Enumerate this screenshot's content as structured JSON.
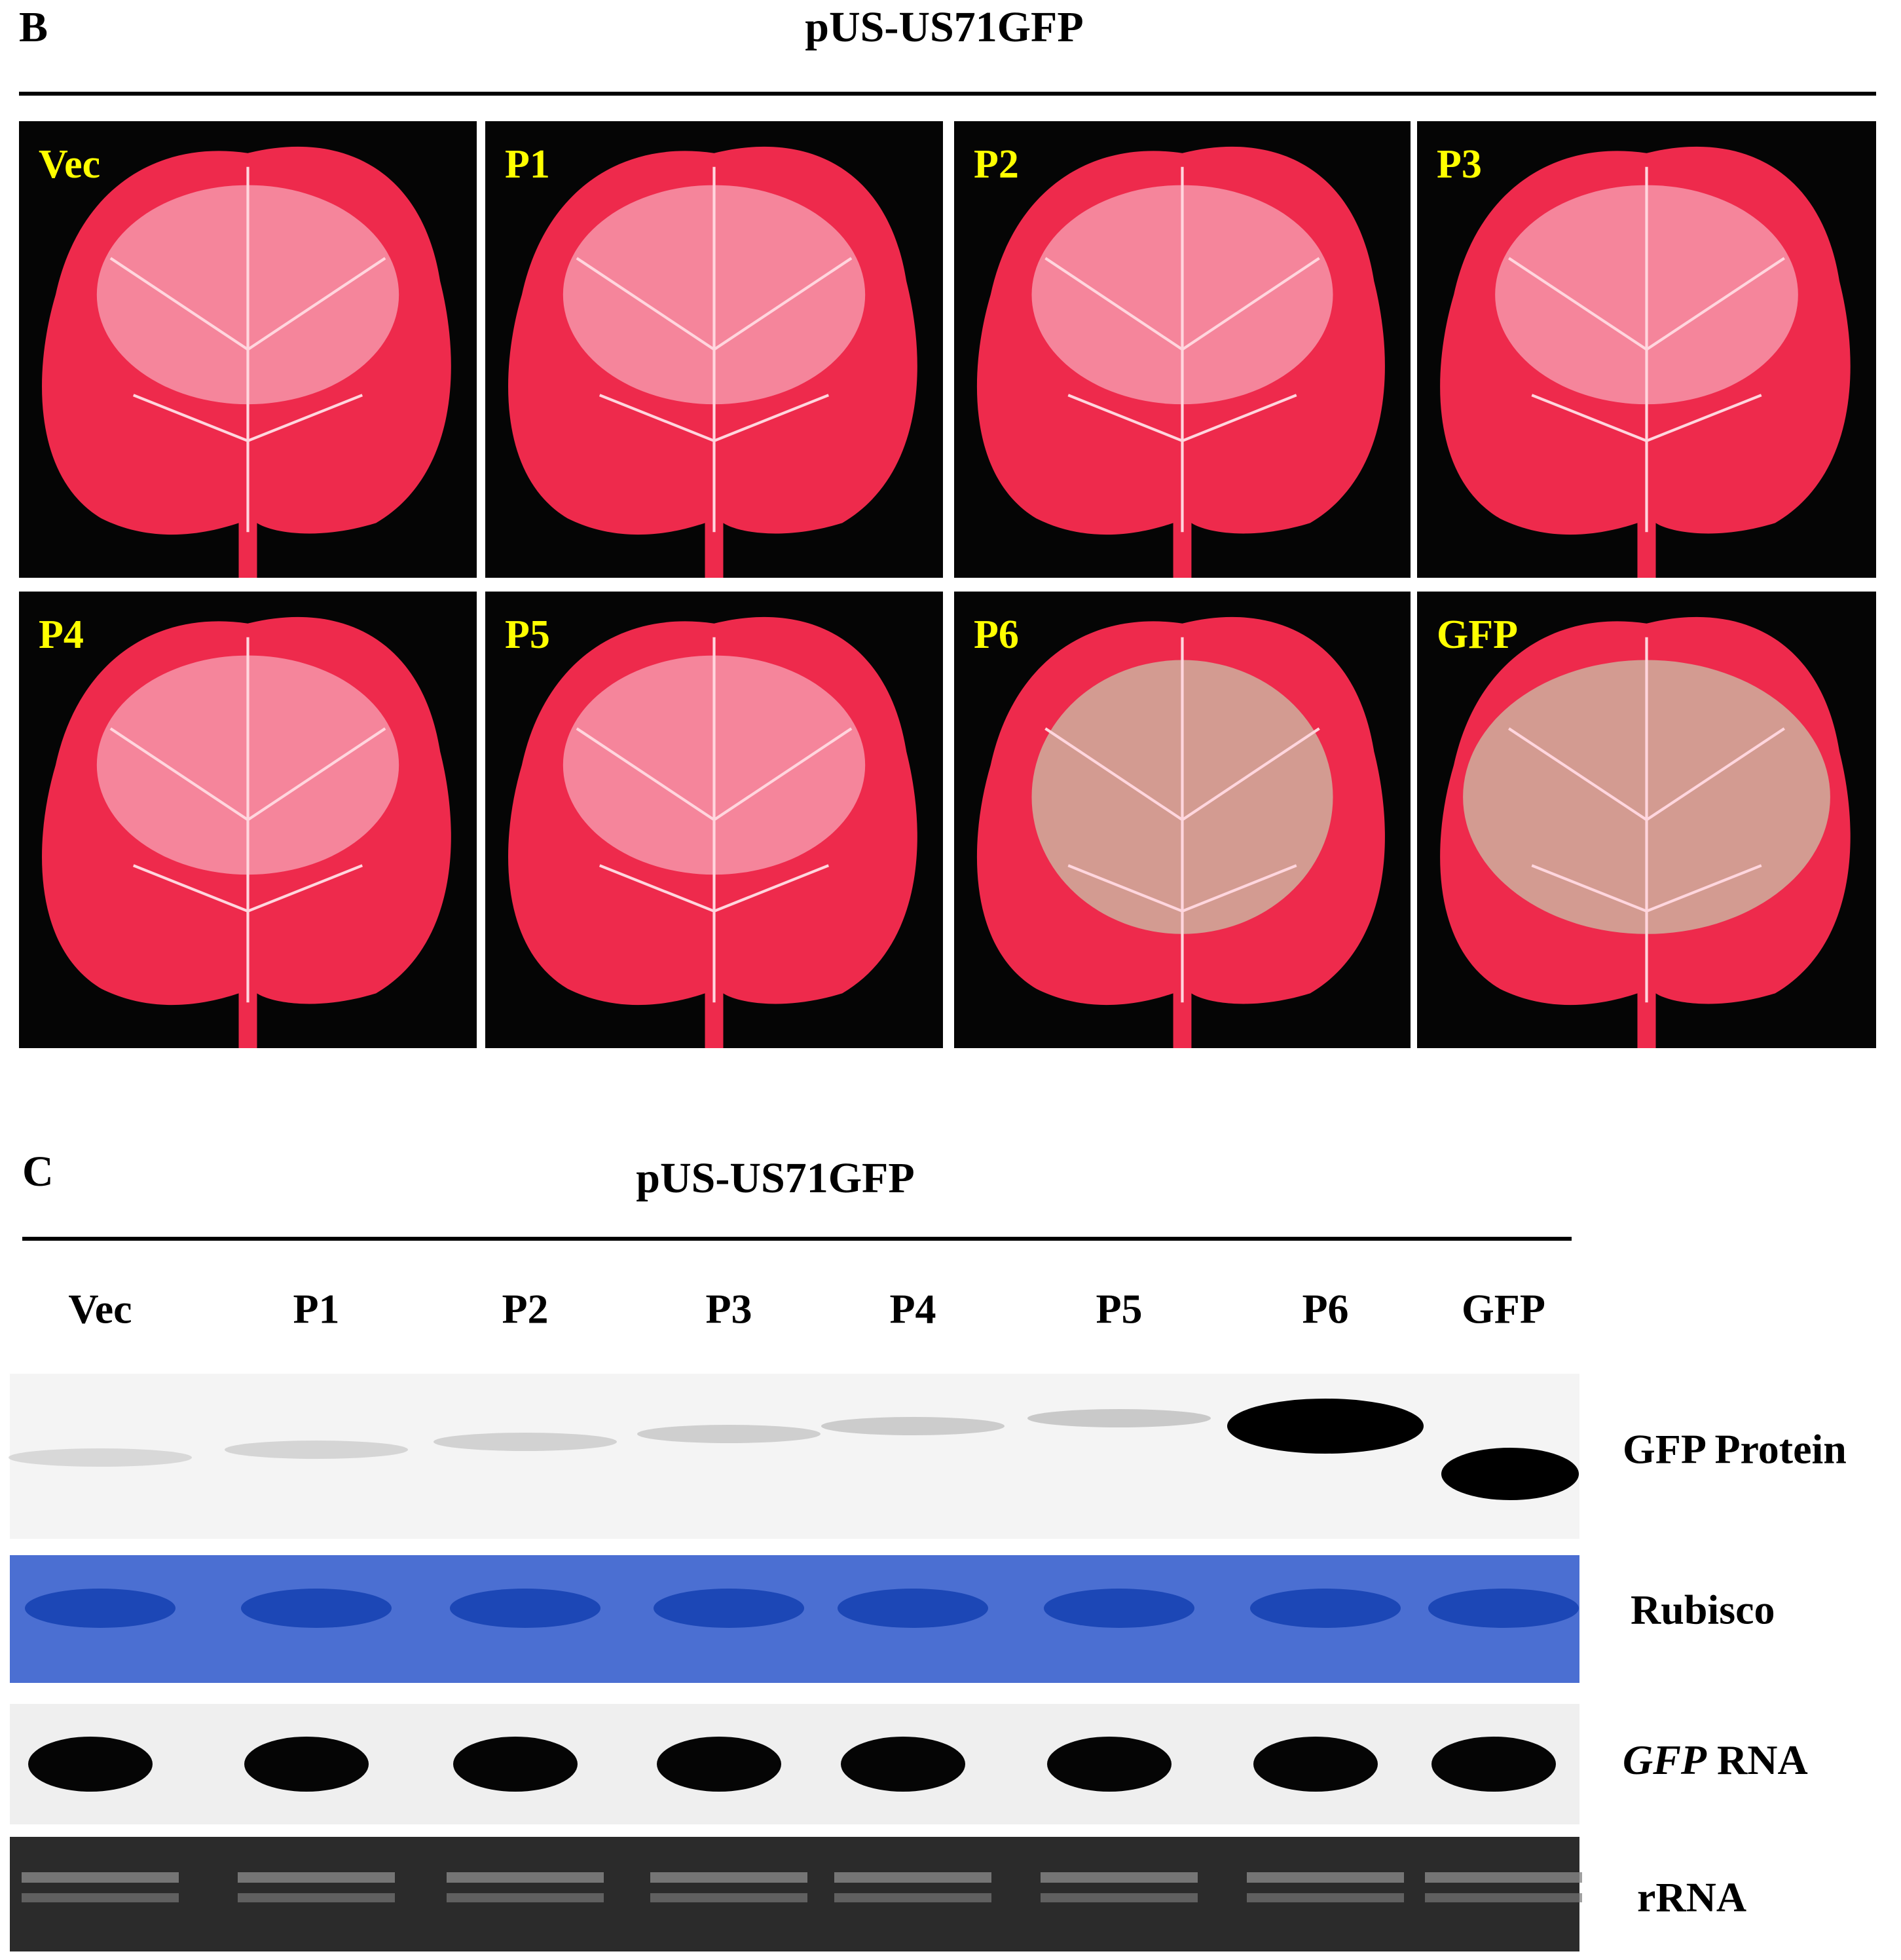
{
  "panel_b": {
    "label": "B",
    "title": "pUS-US71GFP",
    "leaves": [
      "Vec",
      "P1",
      "P2",
      "P3",
      "P4",
      "P5",
      "P6",
      "GFP"
    ]
  },
  "panel_c": {
    "label": "C",
    "title": "pUS-US71GFP",
    "lanes": [
      "Vec",
      "P1",
      "P2",
      "P3",
      "P4",
      "P5",
      "P6",
      "GFP"
    ],
    "rows": [
      {
        "label": "GFP Protein"
      },
      {
        "label": "Rubisco"
      },
      {
        "label_italic": "GFP",
        "label": "RNA"
      },
      {
        "label": "rRNA"
      }
    ]
  }
}
